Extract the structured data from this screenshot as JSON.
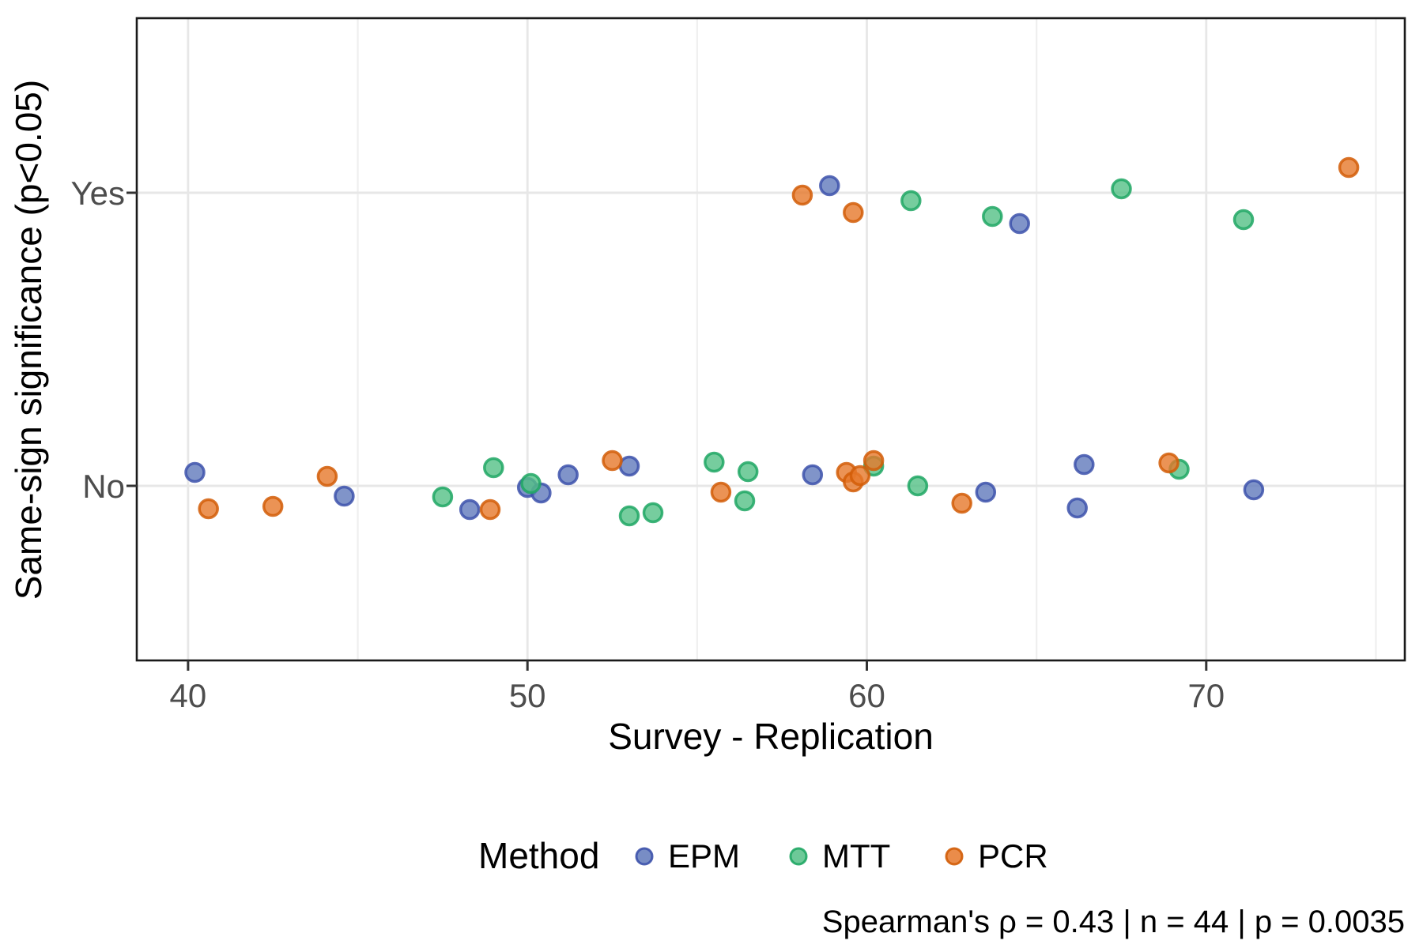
{
  "chart_data": {
    "type": "scatter",
    "title": "",
    "xlabel": "Survey - Replication",
    "ylabel": "Same-sign significance (p<0.05)",
    "caption": "Spearman's ρ = 0.43 | n = 44 | p = 0.0035",
    "legend_title": "Method",
    "legend_position": "bottom",
    "grid": true,
    "x_ticks": [
      40,
      50,
      60,
      70
    ],
    "x_minor_ticks": [
      45,
      55,
      65,
      75
    ],
    "xlim": [
      38.5,
      75.9
    ],
    "y_categories": [
      "Yes",
      "No"
    ],
    "n": 44,
    "spearman_rho": 0.43,
    "p_value": 0.0035,
    "series": [
      {
        "name": "EPM",
        "fill": "#6079bb",
        "stroke": "#3d52ab",
        "points": [
          {
            "x": 58.9,
            "y": "Yes",
            "jy": -9
          },
          {
            "x": 64.5,
            "y": "Yes",
            "jy": 39
          },
          {
            "x": 40.2,
            "y": "No",
            "jy": -17
          },
          {
            "x": 44.6,
            "y": "No",
            "jy": 13
          },
          {
            "x": 48.3,
            "y": "No",
            "jy": 30
          },
          {
            "x": 50.0,
            "y": "No",
            "jy": 2
          },
          {
            "x": 50.4,
            "y": "No",
            "jy": 9
          },
          {
            "x": 51.2,
            "y": "No",
            "jy": -14
          },
          {
            "x": 53.0,
            "y": "No",
            "jy": -25
          },
          {
            "x": 58.4,
            "y": "No",
            "jy": -14
          },
          {
            "x": 63.5,
            "y": "No",
            "jy": 8
          },
          {
            "x": 66.2,
            "y": "No",
            "jy": 28
          },
          {
            "x": 66.4,
            "y": "No",
            "jy": -27
          },
          {
            "x": 71.4,
            "y": "No",
            "jy": 5
          }
        ]
      },
      {
        "name": "MTT",
        "fill": "#54c086",
        "stroke": "#20a764",
        "points": [
          {
            "x": 61.3,
            "y": "Yes",
            "jy": 10
          },
          {
            "x": 63.7,
            "y": "Yes",
            "jy": 30
          },
          {
            "x": 67.5,
            "y": "Yes",
            "jy": -5
          },
          {
            "x": 71.1,
            "y": "Yes",
            "jy": 34
          },
          {
            "x": 47.5,
            "y": "No",
            "jy": 14
          },
          {
            "x": 49.0,
            "y": "No",
            "jy": -23
          },
          {
            "x": 50.1,
            "y": "No",
            "jy": -3
          },
          {
            "x": 53.0,
            "y": "No",
            "jy": 38
          },
          {
            "x": 53.7,
            "y": "No",
            "jy": 34
          },
          {
            "x": 55.5,
            "y": "No",
            "jy": -30
          },
          {
            "x": 56.4,
            "y": "No",
            "jy": 19
          },
          {
            "x": 56.5,
            "y": "No",
            "jy": -18
          },
          {
            "x": 60.2,
            "y": "No",
            "jy": -25
          },
          {
            "x": 61.5,
            "y": "No",
            "jy": 0
          },
          {
            "x": 69.2,
            "y": "No",
            "jy": -21
          }
        ]
      },
      {
        "name": "PCR",
        "fill": "#e6782a",
        "stroke": "#d25d08",
        "points": [
          {
            "x": 58.1,
            "y": "Yes",
            "jy": 3
          },
          {
            "x": 59.6,
            "y": "Yes",
            "jy": 25
          },
          {
            "x": 74.2,
            "y": "Yes",
            "jy": -32
          },
          {
            "x": 40.6,
            "y": "No",
            "jy": 29
          },
          {
            "x": 42.5,
            "y": "No",
            "jy": 26
          },
          {
            "x": 44.1,
            "y": "No",
            "jy": -12
          },
          {
            "x": 48.9,
            "y": "No",
            "jy": 30
          },
          {
            "x": 52.5,
            "y": "No",
            "jy": -32
          },
          {
            "x": 55.7,
            "y": "No",
            "jy": 8
          },
          {
            "x": 59.4,
            "y": "No",
            "jy": -17
          },
          {
            "x": 59.6,
            "y": "No",
            "jy": -5
          },
          {
            "x": 59.8,
            "y": "No",
            "jy": -13
          },
          {
            "x": 60.2,
            "y": "No",
            "jy": -32
          },
          {
            "x": 62.8,
            "y": "No",
            "jy": 22
          },
          {
            "x": 68.9,
            "y": "No",
            "jy": -29
          }
        ]
      }
    ],
    "style": {
      "grid_major_color": "#e7e7e7",
      "grid_minor_color": "#efefef",
      "panel_border_color": "#1a1a1a",
      "tick_color": "#333333",
      "tick_label_color": "#4d4d4d"
    }
  }
}
